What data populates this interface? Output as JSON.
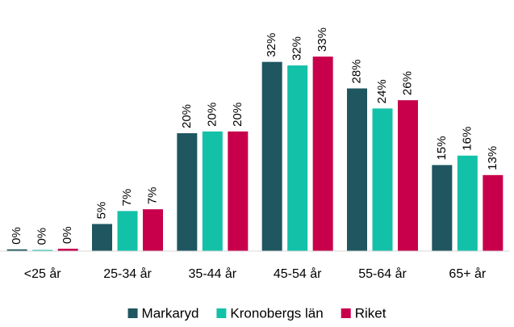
{
  "chart_data": {
    "type": "bar",
    "categories": [
      "<25 år",
      "25-34 år",
      "35-44 år",
      "45-54 år",
      "55-64 år",
      "65+ år"
    ],
    "series": [
      {
        "name": "Markaryd",
        "color": "#1f5660",
        "values": [
          0.3,
          4.6,
          20.0,
          32.1,
          27.6,
          14.6
        ],
        "value_labels": [
          "0%",
          "5%",
          "20%",
          "32%",
          "28%",
          "15%"
        ]
      },
      {
        "name": "Kronobergs län",
        "color": "#13c1a8",
        "values": [
          0.2,
          6.8,
          20.3,
          31.5,
          24.2,
          16.2
        ],
        "value_labels": [
          "0%",
          "7%",
          "20%",
          "32%",
          "24%",
          "16%"
        ]
      },
      {
        "name": "Riket",
        "color": "#c8004b",
        "values": [
          0.4,
          7.1,
          20.3,
          33.0,
          25.6,
          12.9
        ],
        "value_labels": [
          "0%",
          "7%",
          "20%",
          "33%",
          "26%",
          "13%"
        ]
      }
    ],
    "ylim": [
      0,
      35
    ]
  }
}
